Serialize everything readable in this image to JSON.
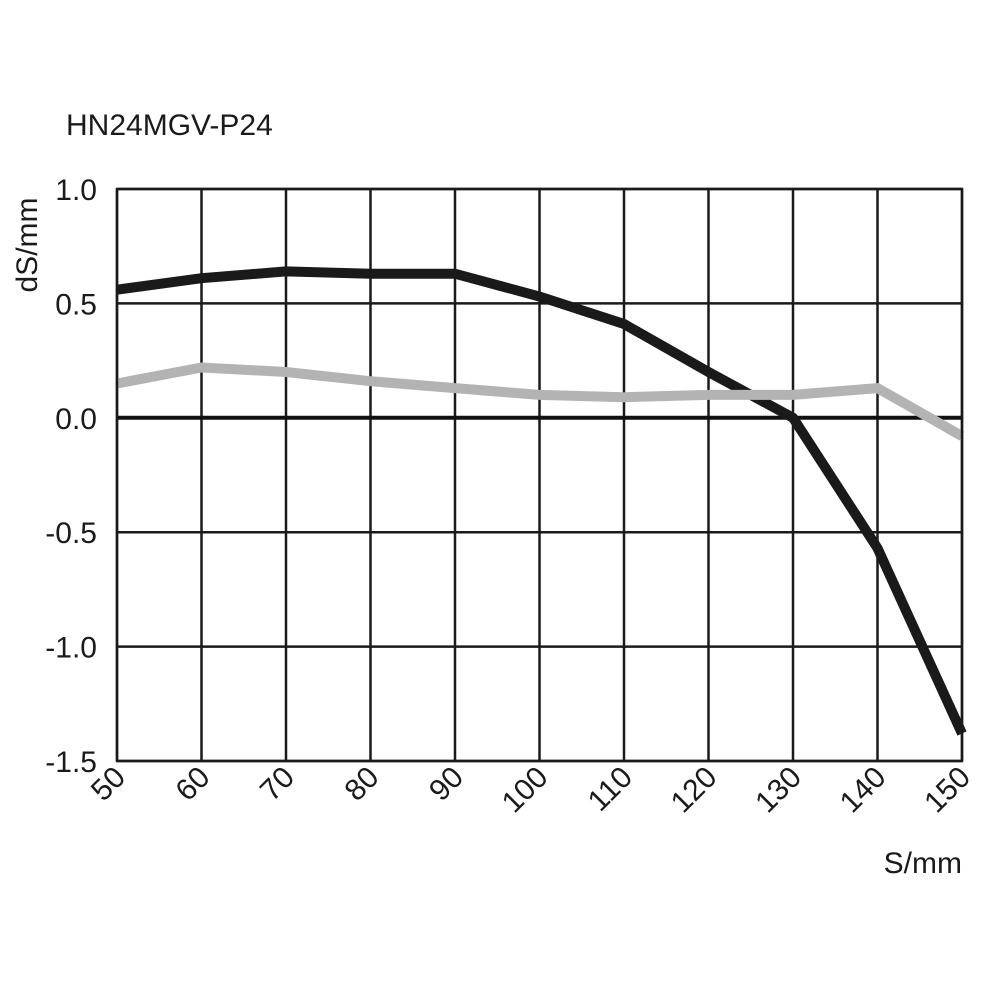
{
  "chart_data": {
    "type": "line",
    "title": "HN24MGV-P24",
    "xlabel": "S/mm",
    "ylabel": "dS/mm",
    "xlim": [
      50,
      150
    ],
    "ylim": [
      -1.5,
      1.0
    ],
    "grid": true,
    "legend": "none",
    "x_ticks": [
      "50",
      "60",
      "70",
      "80",
      "90",
      "100",
      "110",
      "120",
      "130",
      "140",
      "150"
    ],
    "y_ticks": [
      "1.0",
      "0.5",
      "0.0",
      "-0.5",
      "-1.0",
      "-1.5"
    ],
    "series": [
      {
        "color": "#1a1a1a",
        "x": [
          50,
          60,
          70,
          80,
          90,
          100,
          110,
          120,
          130,
          140,
          150
        ],
        "y": [
          0.56,
          0.61,
          0.64,
          0.63,
          0.63,
          0.53,
          0.41,
          0.2,
          0.0,
          -0.57,
          -1.38
        ]
      },
      {
        "color": "#b3b3b3",
        "x": [
          50,
          60,
          70,
          80,
          90,
          100,
          110,
          120,
          130,
          140,
          150
        ],
        "y": [
          0.15,
          0.22,
          0.2,
          0.16,
          0.13,
          0.1,
          0.09,
          0.1,
          0.1,
          0.13,
          -0.08
        ]
      }
    ]
  }
}
